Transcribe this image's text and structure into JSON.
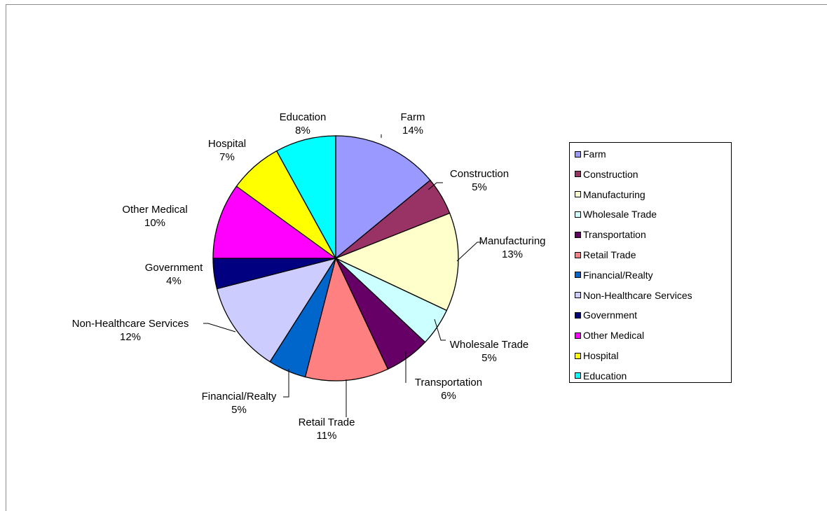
{
  "chart_data": {
    "type": "pie",
    "title": "",
    "categories": [
      "Farm",
      "Construction",
      "Manufacturing",
      "Wholesale Trade",
      "Transportation",
      "Retail Trade",
      "Financial/Realty",
      "Non-Healthcare Services",
      "Government",
      "Other Medical",
      "Hospital",
      "Education"
    ],
    "values": [
      14,
      5,
      13,
      5,
      6,
      11,
      5,
      12,
      4,
      10,
      7,
      8
    ],
    "value_labels": [
      "14%",
      "5%",
      "13%",
      "5%",
      "6%",
      "11%",
      "5%",
      "12%",
      "4%",
      "10%",
      "7%",
      "8%"
    ],
    "colors": [
      "#9999ff",
      "#993366",
      "#ffffcc",
      "#ccffff",
      "#660066",
      "#ff8080",
      "#0066cc",
      "#ccccff",
      "#000080",
      "#ff00ff",
      "#ffff00",
      "#00ffff"
    ],
    "start_angle": "12 o'clock",
    "direction": "clockwise",
    "legend": "right",
    "data_labels": "category name and percent, with leader lines"
  }
}
